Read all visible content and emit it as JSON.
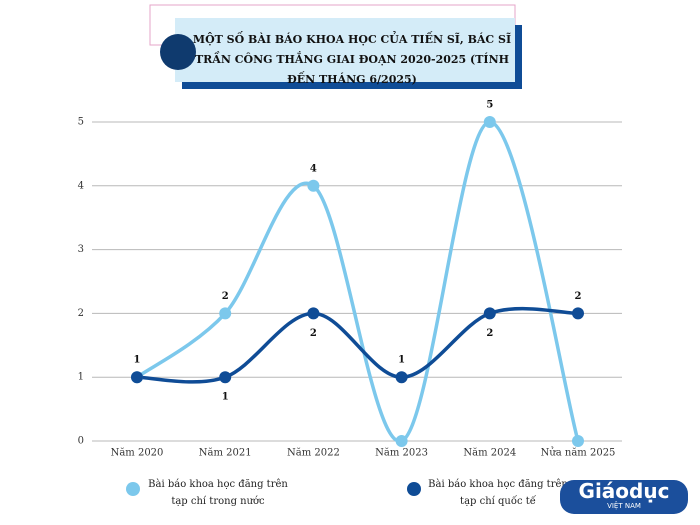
{
  "chart_data": {
    "type": "line",
    "title": "MỘT SỐ BÀI BÁO KHOA HỌC CỦA TIẾN SĨ, BÁC SĨ TRẦN CÔNG THẮNG GIAI ĐOẠN 2020-2025 (TÍNH ĐẾN THÁNG 6/2025)",
    "categories": [
      "Năm 2020",
      "Năm 2021",
      "Năm 2022",
      "Năm 2023",
      "Năm 2024",
      "Nửa năm 2025"
    ],
    "series": [
      {
        "name": "Bài báo khoa học đăng trên tạp chí trong nước",
        "color": "#7cc8ec",
        "values": [
          1,
          2,
          4,
          0,
          5,
          0
        ],
        "value_labels": [
          "1",
          "2",
          "4",
          null,
          "5",
          null
        ]
      },
      {
        "name": "Bài báo khoa học đăng trên tạp chí quốc tế",
        "color": "#0f4c96",
        "values": [
          1,
          1,
          2,
          1,
          2,
          2
        ],
        "value_labels": [
          null,
          "1",
          "2",
          "1",
          "2",
          "2"
        ]
      }
    ],
    "ylim": [
      0,
      5
    ],
    "yticks": [
      0,
      1,
      2,
      3,
      4,
      5
    ],
    "grid": true,
    "logo": "Giáodục",
    "logo_sub": "VIỆT NAM"
  }
}
